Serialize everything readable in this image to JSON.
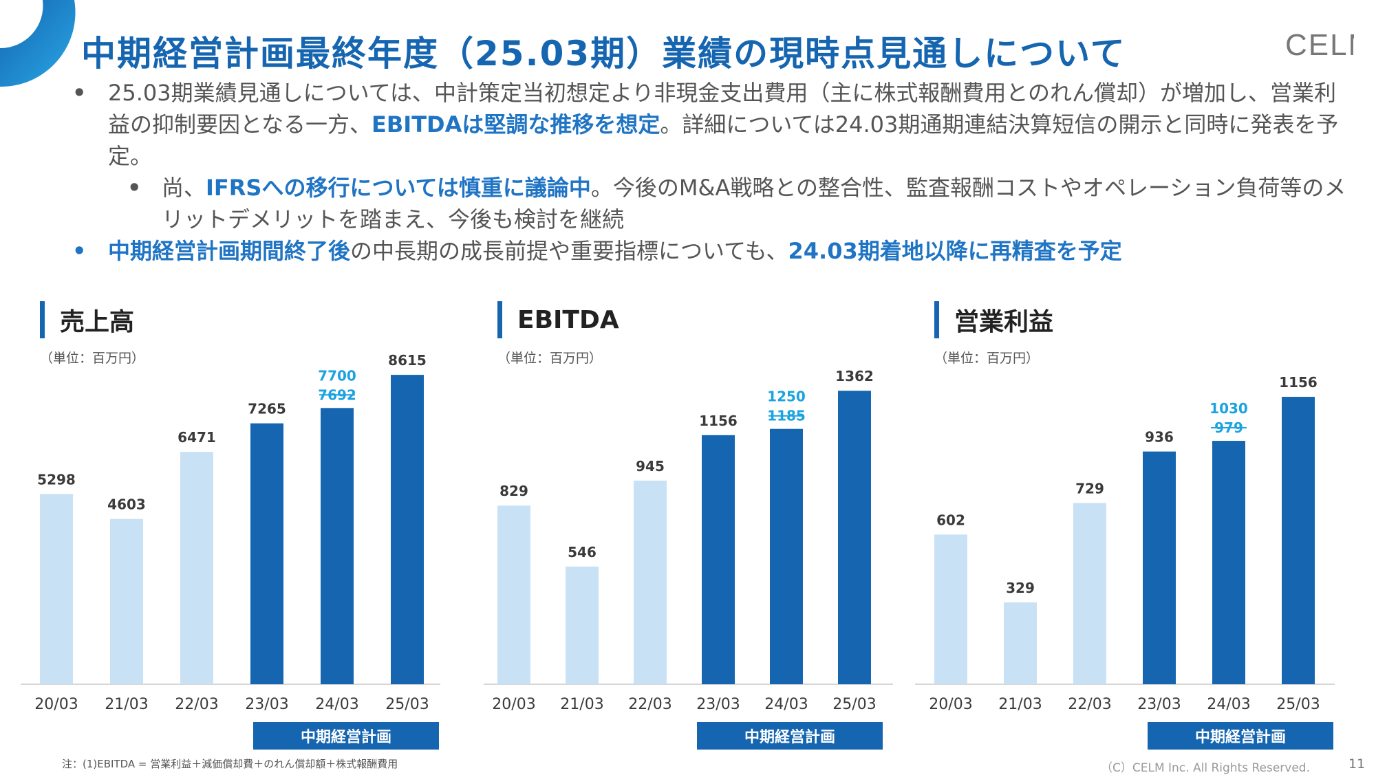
{
  "title": "中期経営計画最終年度（25.03期）業績の現時点見通しについて",
  "logo_text": "CELM",
  "bullets": {
    "b1_part1": "25.03期業績見通しについては、中計策定当初想定より非現金支出費用（主に株式報酬費用とのれん償却）が増加し、営業利益の抑制要因となる一方、",
    "b1_hl": "EBITDAは堅調な推移を想定",
    "b1_part2": "。詳細については24.03期通期連結決算短信の開示と同時に発表を予定。",
    "b2_part1": "尚、",
    "b2_hl": "IFRSへの移行については慎重に議論中",
    "b2_part2": "。今後のM&A戦略との整合性、監査報酬コストやオペレーション負荷等のメリットデメリットを踏まえ、今後も検討を継続",
    "b3_hl1": "中期経営計画期間終了後",
    "b3_part": "の中長期の成長前提や重要指標についても、",
    "b3_hl2": "24.03期着地以降に再精査を予定"
  },
  "unit_label": "（単位：百万円）",
  "plan_label": "中期経営計画",
  "colors": {
    "accent": "#1565b0",
    "light_bar": "#c9e1f5",
    "dark_bar": "#1565b0",
    "forecast_text": "#1aa3e0"
  },
  "chart_data": [
    {
      "type": "bar",
      "title": "売上高",
      "categories": [
        "20/03",
        "21/03",
        "22/03",
        "23/03",
        "24/03",
        "25/03"
      ],
      "values": [
        5298,
        4603,
        6471,
        7265,
        7692,
        8615
      ],
      "plan_period": [
        "23/03",
        "24/03",
        "25/03"
      ],
      "revised": {
        "category": "24/03",
        "new_value": 7700,
        "old_value": 7692
      },
      "ylim": [
        0,
        9000
      ]
    },
    {
      "type": "bar",
      "title": "EBITDA",
      "categories": [
        "20/03",
        "21/03",
        "22/03",
        "23/03",
        "24/03",
        "25/03"
      ],
      "values": [
        829,
        546,
        945,
        1156,
        1185,
        1362
      ],
      "plan_period": [
        "23/03",
        "24/03",
        "25/03"
      ],
      "revised": {
        "category": "24/03",
        "new_value": 1250,
        "old_value": 1185
      },
      "ylim": [
        0,
        1500
      ]
    },
    {
      "type": "bar",
      "title": "営業利益",
      "categories": [
        "20/03",
        "21/03",
        "22/03",
        "23/03",
        "24/03",
        "25/03"
      ],
      "values": [
        602,
        329,
        729,
        936,
        979,
        1156
      ],
      "plan_period": [
        "23/03",
        "24/03",
        "25/03"
      ],
      "revised": {
        "category": "24/03",
        "new_value": 1030,
        "old_value": 979
      },
      "ylim": [
        0,
        1300
      ]
    }
  ],
  "footnote": "注：(1)EBITDA = 営業利益＋減価償却費＋のれん償却額＋株式報酬費用",
  "copyright": "（C）CELM Inc. All Rights Reserved.",
  "page_number": "11"
}
